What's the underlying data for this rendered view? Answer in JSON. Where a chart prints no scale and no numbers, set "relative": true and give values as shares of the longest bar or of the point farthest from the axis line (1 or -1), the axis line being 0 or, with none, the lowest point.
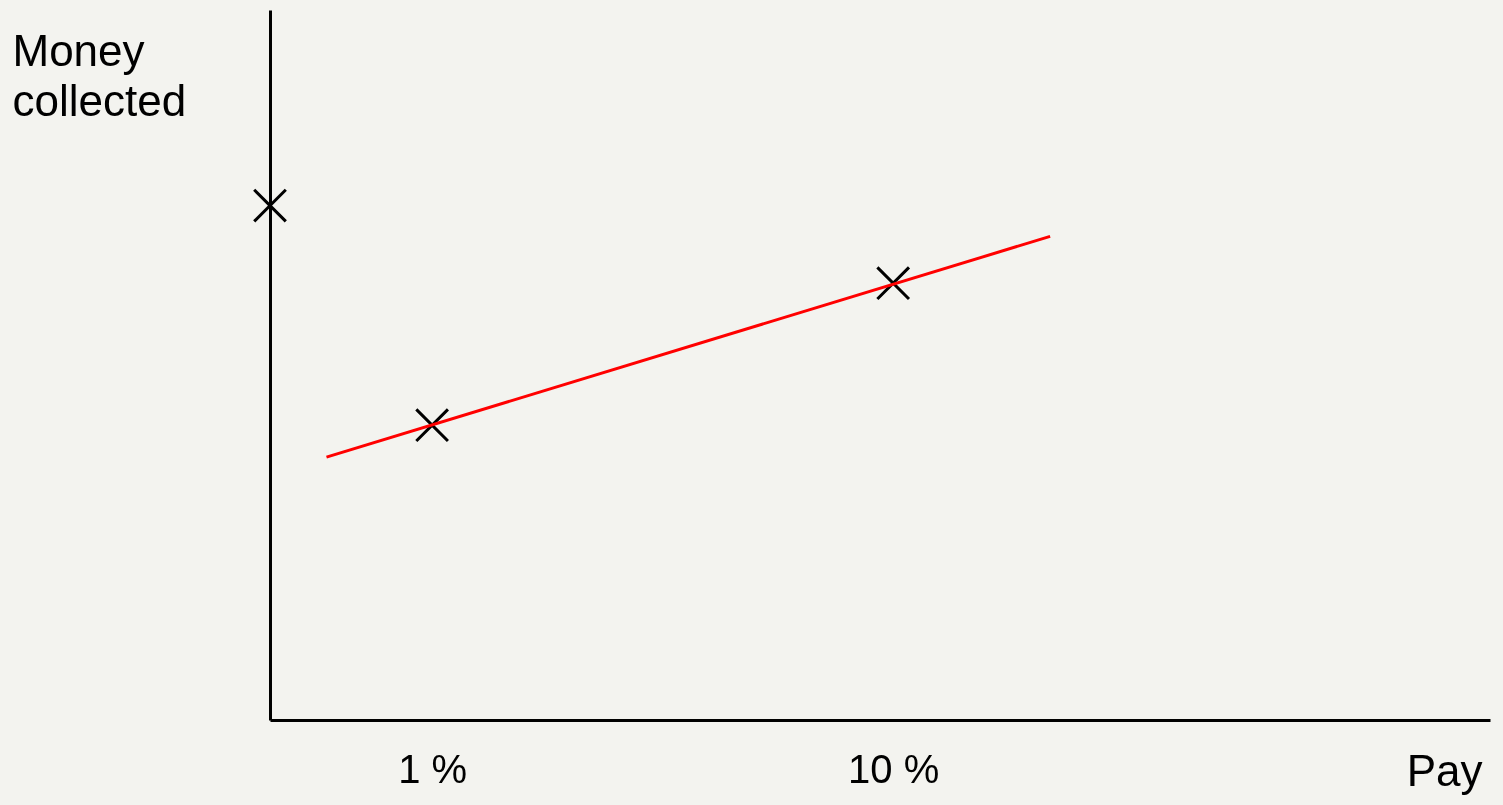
{
  "chart_data": {
    "type": "scatter",
    "xlabel": "Pay",
    "ylabel": "Money collected",
    "relative": true,
    "log": "x",
    "xlim": [
      0.445,
      197
    ],
    "xticks": [
      {
        "value": 1,
        "label": "1 %"
      },
      {
        "value": 10,
        "label": "10 %"
      }
    ],
    "tick_labels": "x",
    "grid": false,
    "marker": "cross",
    "series": [
      {
        "color": "#000000",
        "x": [
          0.445,
          1,
          10
        ],
        "values": [
          1,
          0.573,
          0.849
        ]
      },
      {
        "type": "line",
        "marker": "none",
        "color": "#ff0000",
        "x": [
          0.59,
          21.9
        ],
        "values": [
          0.511,
          0.94
        ]
      }
    ]
  }
}
